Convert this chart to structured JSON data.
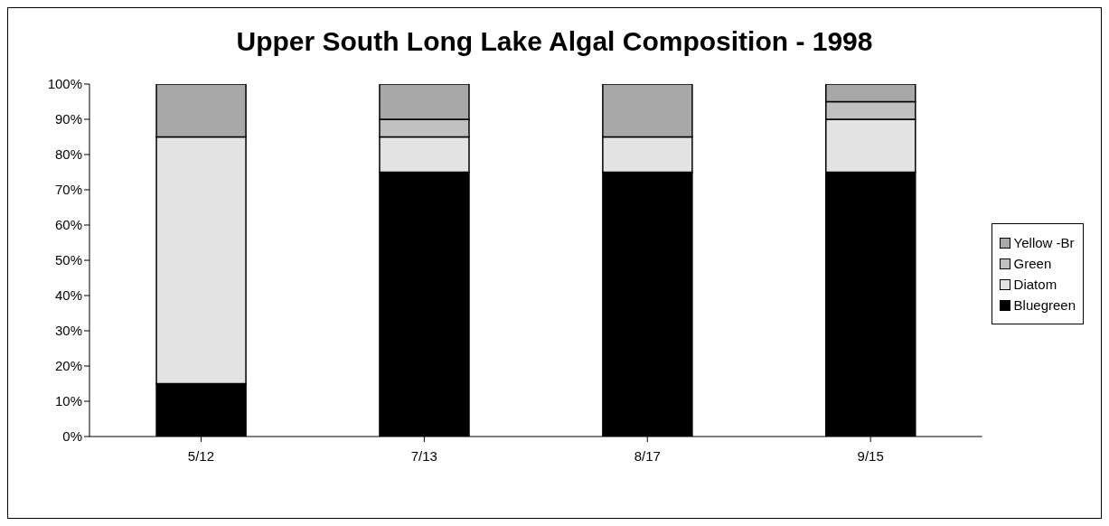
{
  "chart_data": {
    "type": "bar",
    "title": "Upper South Long Lake Algal Composition - 1998",
    "categories": [
      "5/12",
      "7/13",
      "8/17",
      "9/15"
    ],
    "stacked": true,
    "series": [
      {
        "name": "Bluegreen",
        "color": "#000000",
        "values": [
          15,
          75,
          75,
          75
        ]
      },
      {
        "name": "Diatom",
        "color": "#e3e3e3",
        "values": [
          70,
          10,
          10,
          15
        ]
      },
      {
        "name": "Green",
        "color": "#c0c0c0",
        "values": [
          0,
          5,
          0,
          5
        ]
      },
      {
        "name": "Yellow -Br",
        "color": "#a8a8a8",
        "values": [
          15,
          10,
          15,
          5
        ]
      }
    ],
    "ylim": [
      0,
      100
    ],
    "yticks": [
      {
        "value": 0,
        "label": "0%"
      },
      {
        "value": 10,
        "label": "10%"
      },
      {
        "value": 20,
        "label": "20%"
      },
      {
        "value": 30,
        "label": "30%"
      },
      {
        "value": 40,
        "label": "40%"
      },
      {
        "value": 50,
        "label": "50%"
      },
      {
        "value": 60,
        "label": "60%"
      },
      {
        "value": 70,
        "label": "70%"
      },
      {
        "value": 80,
        "label": "80%"
      },
      {
        "value": 90,
        "label": "90%"
      },
      {
        "value": 100,
        "label": "100%"
      }
    ],
    "grid": false,
    "legend": "right"
  }
}
